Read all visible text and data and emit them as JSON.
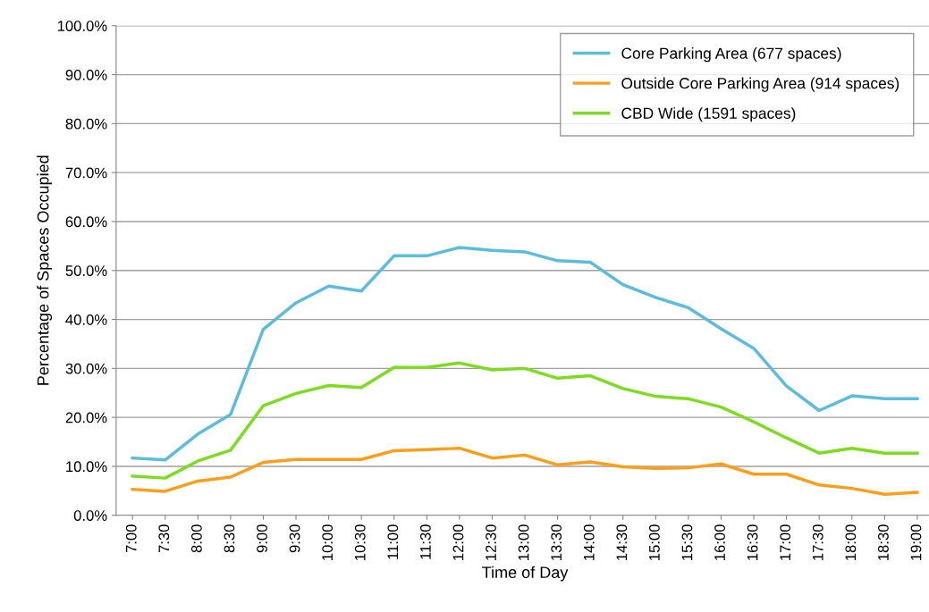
{
  "chart_data": {
    "type": "line",
    "xlabel": "Time of Day",
    "ylabel": "Percentage of Spaces Occupied",
    "categories": [
      "7:00",
      "7:30",
      "8:00",
      "8:30",
      "9:00",
      "9:30",
      "10:00",
      "10:30",
      "11:00",
      "11:30",
      "12:00",
      "12:30",
      "13:00",
      "13:30",
      "14:00",
      "14:30",
      "15:00",
      "15:30",
      "16:00",
      "16:30",
      "17:00",
      "17:30",
      "18:00",
      "18:30",
      "19:00"
    ],
    "series": [
      {
        "name": "Core Parking Area (677 spaces)",
        "color": "#5bbcdc",
        "values": [
          11.7,
          11.3,
          16.6,
          20.6,
          38.0,
          43.4,
          46.8,
          45.8,
          53.0,
          53.0,
          54.7,
          54.1,
          53.8,
          52.0,
          51.7,
          47.1,
          44.5,
          42.4,
          38.1,
          34.1,
          26.4,
          21.4,
          24.4,
          23.8,
          23.8
        ]
      },
      {
        "name": "Outside Core Parking Area (914 spaces)",
        "color": "#ff9e1b",
        "values": [
          5.3,
          4.9,
          7.0,
          7.8,
          10.8,
          11.4,
          11.4,
          11.4,
          13.2,
          13.4,
          13.7,
          11.7,
          12.3,
          10.3,
          10.9,
          9.9,
          9.6,
          9.7,
          10.5,
          8.4,
          8.4,
          6.2,
          5.5,
          4.3,
          4.7
        ]
      },
      {
        "name": "CBD Wide (1591 spaces)",
        "color": "#7ddc1f",
        "values": [
          8.0,
          7.6,
          11.1,
          13.3,
          22.4,
          24.9,
          26.5,
          26.1,
          30.2,
          30.2,
          31.1,
          29.7,
          30.0,
          28.0,
          28.5,
          25.9,
          24.3,
          23.8,
          22.1,
          19.1,
          15.8,
          12.7,
          13.7,
          12.7,
          12.7
        ]
      }
    ],
    "ylim": [
      0,
      100
    ],
    "yticks": [
      {
        "value": 0,
        "label": "0.0%"
      },
      {
        "value": 10,
        "label": "10.0%"
      },
      {
        "value": 20,
        "label": "20.0%"
      },
      {
        "value": 30,
        "label": "30.0%"
      },
      {
        "value": 40,
        "label": "40.0%"
      },
      {
        "value": 50,
        "label": "50.0%"
      },
      {
        "value": 60,
        "label": "60.0%"
      },
      {
        "value": 70,
        "label": "70.0%"
      },
      {
        "value": 80,
        "label": "80.0%"
      },
      {
        "value": 90,
        "label": "90.0%"
      },
      {
        "value": 100,
        "label": "100.0%"
      }
    ],
    "grid": "y",
    "legend": "top right",
    "marker": "none",
    "line_style": "solid"
  }
}
